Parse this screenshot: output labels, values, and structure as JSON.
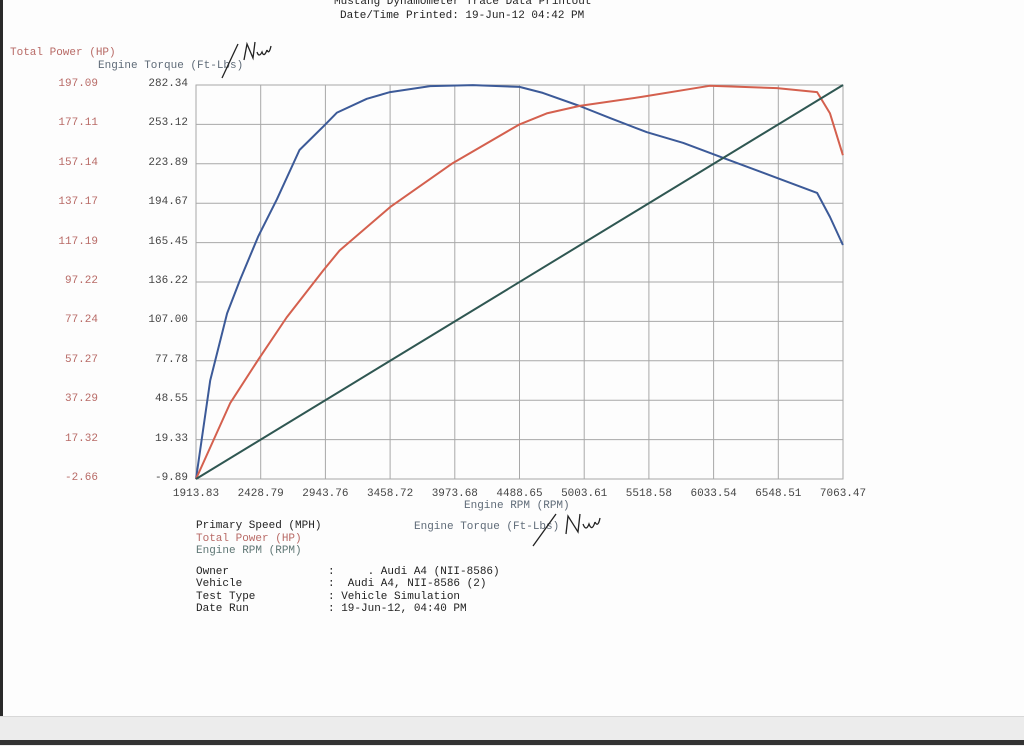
{
  "header": {
    "title": "Mustang Dynamometer Trace Data Printout",
    "printed": "Date/Time Printed: 19-Jun-12 04:42 PM"
  },
  "axis_labels": {
    "left_power": "Total Power (HP)",
    "left_torque": "Engine Torque (Ft-Lbs)",
    "x": "Engine RPM (RPM)",
    "handwritten_unit": "Nm"
  },
  "legend": {
    "primary_speed": "Primary Speed (MPH)",
    "total_power": "Total Power (HP)",
    "engine_rpm": "Engine RPM (RPM)",
    "engine_torque": "Engine Torque (Ft-Lbs)"
  },
  "info": [
    {
      "label": "Owner",
      "value": ":     . Audi A4 (NII-8586)"
    },
    {
      "label": "Vehicle",
      "value": ":  Audi A4, NII-8586 (2)"
    },
    {
      "label": "Test Type",
      "value": ": Vehicle Simulation"
    },
    {
      "label": "Date Run",
      "value": ": 19-Jun-12, 04:40 PM"
    }
  ],
  "colors": {
    "torque": "#3c5a98",
    "power": "#d4604e",
    "rpm": "#2f5752",
    "grid": "#a8a8a8"
  },
  "chart_data": {
    "type": "line",
    "grid": true,
    "xlabel": "Engine RPM (RPM)",
    "xlim": [
      1913.83,
      7063.47
    ],
    "x_ticks": [
      "1913.83",
      "2428.79",
      "2943.76",
      "3458.72",
      "3973.68",
      "4488.65",
      "5003.61",
      "5518.58",
      "6033.54",
      "6548.51",
      "7063.47"
    ],
    "y_power": {
      "label": "Total Power (HP)",
      "ylim": [
        -2.66,
        197.09
      ],
      "ticks": [
        "197.09",
        "177.11",
        "157.14",
        "137.17",
        "117.19",
        "97.22",
        "77.24",
        "57.27",
        "37.29",
        "17.32",
        "-2.66"
      ]
    },
    "y_torque": {
      "label": "Engine Torque (Ft-Lbs)",
      "ylim": [
        -9.89,
        282.34
      ],
      "ticks": [
        "282.34",
        "253.12",
        "223.89",
        "194.67",
        "165.45",
        "136.22",
        "107.00",
        "77.78",
        "48.55",
        "19.33",
        "-9.89"
      ]
    },
    "series": [
      {
        "name": "Engine Torque (Ft-Lbs)",
        "axis": "y_torque",
        "color": "#3c5a98",
        "points": [
          [
            1914,
            -9.89
          ],
          [
            2027,
            63.2
          ],
          [
            2161,
            112.9
          ],
          [
            2264,
            137.7
          ],
          [
            2408,
            169.8
          ],
          [
            2558,
            197.6
          ],
          [
            2738,
            234.1
          ],
          [
            2928,
            251.6
          ],
          [
            3036,
            261.9
          ],
          [
            3273,
            272.1
          ],
          [
            3459,
            277.1
          ],
          [
            3778,
            281.5
          ],
          [
            4118,
            282.3
          ],
          [
            4489,
            280.9
          ],
          [
            4674,
            276.5
          ],
          [
            4968,
            266.8
          ],
          [
            5210,
            257.8
          ],
          [
            5503,
            247.3
          ],
          [
            5792,
            239.4
          ],
          [
            6111,
            228.3
          ],
          [
            6538,
            213.4
          ],
          [
            6857,
            202.3
          ],
          [
            6960,
            184.4
          ],
          [
            7063,
            163.7
          ]
        ]
      },
      {
        "name": "Total Power (HP)",
        "axis": "y_power",
        "color": "#d4604e",
        "points": [
          [
            1914,
            -2.66
          ],
          [
            2187,
            35.9
          ],
          [
            2408,
            57.7
          ],
          [
            2635,
            79.2
          ],
          [
            2928,
            103.2
          ],
          [
            3057,
            113.2
          ],
          [
            3459,
            135.2
          ],
          [
            3958,
            157.5
          ],
          [
            4411,
            174.3
          ],
          [
            4489,
            177.1
          ],
          [
            4705,
            182.7
          ],
          [
            4968,
            186.5
          ],
          [
            5467,
            191.1
          ],
          [
            6002,
            196.7
          ],
          [
            6538,
            195.5
          ],
          [
            6857,
            193.5
          ],
          [
            6960,
            182.7
          ],
          [
            7063,
            161.5
          ]
        ]
      },
      {
        "name": "Engine RPM (RPM)",
        "axis": "x",
        "color": "#2f5752",
        "points": [
          [
            1913.83,
            1913.83
          ],
          [
            7063.47,
            7063.47
          ]
        ]
      }
    ]
  }
}
